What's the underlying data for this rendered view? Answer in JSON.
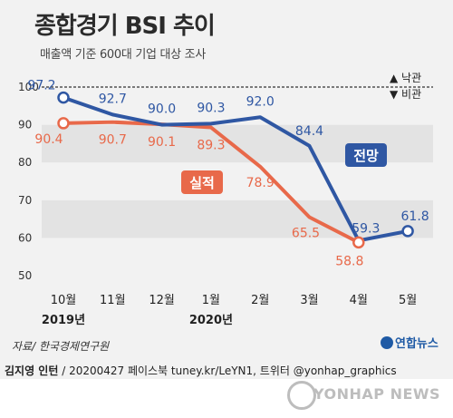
{
  "header": {
    "title": "종합경기 BSI 추이",
    "subtitle": "매출액 기준 600대 기업 대상 조사"
  },
  "legend": {
    "up_label": "▲ 낙관",
    "down_label": "▼ 비관"
  },
  "footer": {
    "source": "자료/ 한국경제연구원",
    "logo": "연합뉴스",
    "credit_name": "김지영 인턴",
    "credit_rest": " / 20200427  페이스북 tuney.kr/LeYN1, 트위터 @yonhap_graphics",
    "watermark": "YONHAP NEWS"
  },
  "chart_data": {
    "type": "line",
    "categories": [
      "10월",
      "11월",
      "12월",
      "1월",
      "2월",
      "3월",
      "4월",
      "5월"
    ],
    "year_labels": [
      {
        "text": "2019년",
        "category_index": 0
      },
      {
        "text": "2020년",
        "category_index": 3
      }
    ],
    "yticks": [
      50,
      60,
      70,
      80,
      90,
      100
    ],
    "ylim": [
      50,
      100
    ],
    "reference_line": 100,
    "series": [
      {
        "name": "전망",
        "color": "#2f57a3",
        "values": [
          97.2,
          92.7,
          90.0,
          90.3,
          92.0,
          84.4,
          59.3,
          61.8
        ],
        "labels": [
          "97.2",
          "92.7",
          "90.0",
          "90.3",
          "92.0",
          "84.4",
          "59.3",
          "61.8"
        ]
      },
      {
        "name": "실적",
        "color": "#e8694a",
        "values": [
          90.4,
          90.7,
          90.1,
          89.3,
          78.9,
          65.5,
          58.8,
          null
        ],
        "labels": [
          "90.4",
          "90.7",
          "90.1",
          "89.3",
          "78.9",
          "65.5",
          "58.8",
          ""
        ]
      }
    ]
  }
}
